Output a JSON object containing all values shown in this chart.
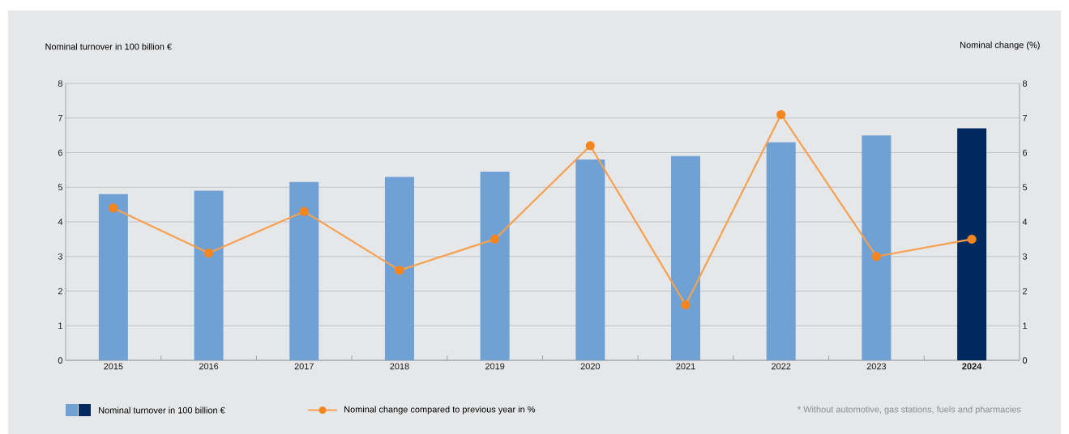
{
  "chart_data": {
    "type": "bar",
    "categories": [
      "2015",
      "2016",
      "2017",
      "2018",
      "2019",
      "2020",
      "2021",
      "2022",
      "2023",
      "**2024**"
    ],
    "ylabel": "Nominal turnover in 100 billion €",
    "y2label": "Nominal change (%)",
    "ylim": [
      0,
      8
    ],
    "yticks": [
      0,
      1,
      2,
      3,
      4,
      5,
      6,
      7,
      8
    ],
    "y2lim": [
      0,
      8
    ],
    "y2ticks": [
      0,
      1,
      2,
      3,
      4,
      5,
      6,
      7,
      8
    ],
    "grid": "y",
    "legend": "bottom",
    "marker": "circle",
    "annotations": [
      "* Without automotive, gas stations, fuels and pharmacies"
    ],
    "series": [
      {
        "name": "Nominal turnover in 100 billion €",
        "colors": [
          "#70a1d5",
          "#70a1d5",
          "#70a1d5",
          "#70a1d5",
          "#70a1d5",
          "#70a1d5",
          "#70a1d5",
          "#70a1d5",
          "#70a1d5",
          "#002a5f"
        ],
        "values": [
          4.8,
          4.9,
          5.15,
          5.3,
          5.45,
          5.8,
          5.9,
          6.3,
          6.5,
          6.7
        ]
      },
      {
        "name": "Nominal change compared to previous year in %",
        "type": "line",
        "axis": "y2",
        "color": "#f7a04f",
        "values": [
          4.4,
          3.1,
          4.3,
          2.6,
          3.5,
          6.2,
          1.6,
          7.1,
          3.0,
          3.5
        ]
      }
    ]
  }
}
